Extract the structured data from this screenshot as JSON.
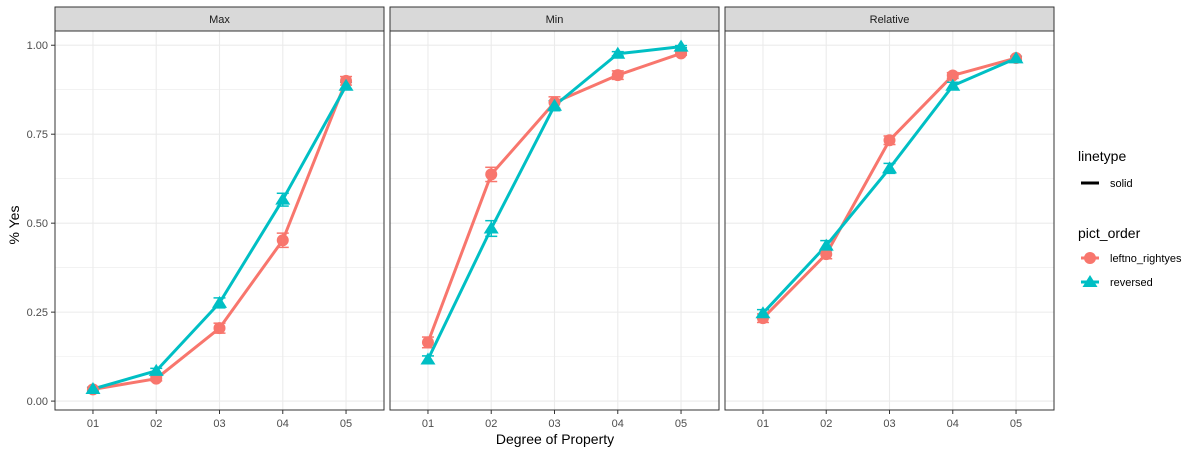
{
  "chart_data": {
    "type": "line",
    "xlabel": "Degree of Property",
    "ylabel": "% Yes",
    "categories": [
      "01",
      "02",
      "03",
      "04",
      "05"
    ],
    "ylim": [
      -0.025,
      1.04
    ],
    "yticks": [
      0.0,
      0.25,
      0.5,
      0.75,
      1.0
    ],
    "ytick_labels": [
      "0.00",
      "0.25",
      "0.50",
      "0.75",
      "1.00"
    ],
    "grid": true,
    "facets": [
      {
        "label": "Max",
        "series": [
          {
            "name": "leftno_rightyes",
            "values": [
              0.033,
              0.063,
              0.205,
              0.452,
              0.9
            ],
            "errors": [
              0.005,
              0.006,
              0.014,
              0.02,
              0.012
            ]
          },
          {
            "name": "reversed",
            "values": [
              0.034,
              0.085,
              0.276,
              0.566,
              0.886
            ],
            "errors": [
              0.005,
              0.007,
              0.014,
              0.018,
              0.01
            ]
          }
        ]
      },
      {
        "label": "Min",
        "series": [
          {
            "name": "leftno_rightyes",
            "values": [
              0.165,
              0.637,
              0.839,
              0.916,
              0.977
            ],
            "errors": [
              0.015,
              0.02,
              0.016,
              0.012,
              0.005
            ]
          },
          {
            "name": "reversed",
            "values": [
              0.117,
              0.485,
              0.83,
              0.976,
              0.996
            ],
            "errors": [
              0.01,
              0.022,
              0.014,
              0.006,
              0.003
            ]
          }
        ]
      },
      {
        "label": "Relative",
        "series": [
          {
            "name": "leftno_rightyes",
            "values": [
              0.233,
              0.413,
              0.733,
              0.915,
              0.964
            ],
            "errors": [
              0.012,
              0.013,
              0.012,
              0.008,
              0.005
            ]
          },
          {
            "name": "reversed",
            "values": [
              0.247,
              0.437,
              0.654,
              0.886,
              0.963
            ],
            "errors": [
              0.01,
              0.014,
              0.014,
              0.01,
              0.006
            ]
          }
        ]
      }
    ],
    "legend": {
      "position": "right",
      "groups": [
        {
          "title": "linetype",
          "items": [
            {
              "label": "solid",
              "marker": "line"
            }
          ]
        },
        {
          "title": "pict_order",
          "items": [
            {
              "label": "leftno_rightyes",
              "marker": "circle",
              "color": "#F8766D"
            },
            {
              "label": "reversed",
              "marker": "triangle",
              "color": "#00BFC4"
            }
          ]
        }
      ]
    },
    "colors": {
      "leftno_rightyes": "#F8766D",
      "reversed": "#00BFC4",
      "strip_fill": "#D9D9D9",
      "panel_border": "#333333",
      "grid": "#EBEBEB"
    }
  }
}
